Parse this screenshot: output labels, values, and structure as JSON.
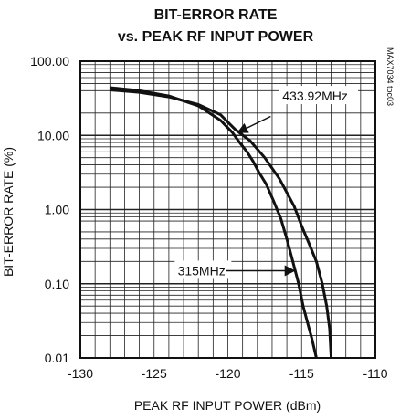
{
  "chart_data": {
    "type": "line",
    "title_line1": "BIT-ERROR RATE",
    "title_line2": "vs. PEAK RF INPUT POWER",
    "xlabel": "PEAK RF INPUT POWER (dBm)",
    "ylabel": "BIT-ERROR RATE (%)",
    "xlim": [
      -130,
      -110
    ],
    "ylim": [
      0.01,
      100
    ],
    "yscale": "log",
    "grid": true,
    "x_ticks": [
      -130,
      -125,
      -120,
      -115,
      -110
    ],
    "x_tick_labels": [
      "-130",
      "-125",
      "-120",
      "-115",
      "-110"
    ],
    "y_ticks": [
      100,
      10,
      1,
      0.1,
      0.01
    ],
    "y_tick_labels": [
      "100.00",
      "10.00",
      "1.00",
      "0.10",
      "0.01"
    ],
    "code_label": "MAX7034 toc03",
    "series": [
      {
        "name": "433.92MHz",
        "x": [
          -128,
          -126,
          -124,
          -122,
          -120.5,
          -119.5,
          -118.5,
          -117.5,
          -116.5,
          -115.5,
          -115,
          -114.5,
          -114,
          -113.6,
          -113.3,
          -113.1,
          -113
        ],
        "y": [
          41,
          38,
          33,
          26,
          19,
          12,
          8.5,
          5,
          2.6,
          1.1,
          0.6,
          0.35,
          0.2,
          0.1,
          0.05,
          0.025,
          0.01
        ]
      },
      {
        "name": "315MHz",
        "x": [
          -128,
          -126,
          -124,
          -122,
          -120.5,
          -119.7,
          -119.2,
          -118.7,
          -118.3,
          -117.9,
          -117.4,
          -116.9,
          -116.4,
          -116,
          -115.6,
          -115.2,
          -114.9,
          -114.6,
          -114.3,
          -114
        ],
        "y": [
          44,
          40,
          34,
          25,
          16,
          11,
          8,
          6,
          4.5,
          3.2,
          2.2,
          1.3,
          0.75,
          0.4,
          0.2,
          0.1,
          0.05,
          0.03,
          0.018,
          0.01
        ]
      }
    ],
    "annotations": [
      {
        "text": "433.92MHz",
        "series": "433.92MHz"
      },
      {
        "text": "315MHz",
        "series": "315MHz"
      }
    ]
  }
}
